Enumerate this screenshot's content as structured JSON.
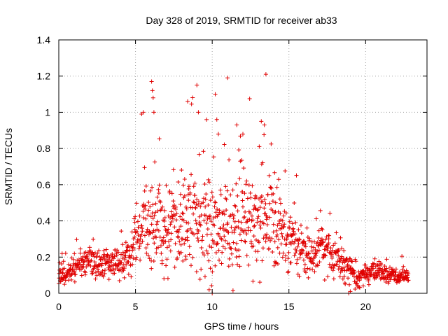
{
  "chart_data": {
    "type": "scatter",
    "title": "Day 328 of 2019, SRMTID for receiver ab33",
    "xlabel": "GPS time / hours",
    "ylabel": "SRMTID / TECUs",
    "xlim": [
      0,
      24
    ],
    "ylim": [
      0,
      1.4
    ],
    "xticks": [
      0,
      5,
      10,
      15,
      20
    ],
    "xtick_labels": [
      "0",
      "5",
      "10",
      "15",
      "20"
    ],
    "yticks": [
      0,
      0.2,
      0.4,
      0.6,
      0.8,
      1.0,
      1.2,
      1.4
    ],
    "ytick_labels": [
      "0",
      "0.2",
      "0.4",
      "0.6",
      "0.8",
      "1",
      "1.2",
      "1.4"
    ],
    "grid": true,
    "marker": "plus",
    "color": "#e00000",
    "series": [
      {
        "name": "SRMTID",
        "profile": [
          {
            "x": 0.0,
            "center": 0.09,
            "spread": 0.05
          },
          {
            "x": 1.0,
            "center": 0.13,
            "spread": 0.06
          },
          {
            "x": 2.0,
            "center": 0.19,
            "spread": 0.07
          },
          {
            "x": 3.0,
            "center": 0.16,
            "spread": 0.07
          },
          {
            "x": 4.0,
            "center": 0.15,
            "spread": 0.07
          },
          {
            "x": 4.8,
            "center": 0.22,
            "spread": 0.09
          },
          {
            "x": 5.5,
            "center": 0.42,
            "spread": 0.2
          },
          {
            "x": 6.2,
            "center": 0.4,
            "spread": 0.25
          },
          {
            "x": 7.0,
            "center": 0.33,
            "spread": 0.2
          },
          {
            "x": 8.5,
            "center": 0.4,
            "spread": 0.25
          },
          {
            "x": 10.0,
            "center": 0.38,
            "spread": 0.27
          },
          {
            "x": 11.5,
            "center": 0.35,
            "spread": 0.23
          },
          {
            "x": 13.0,
            "center": 0.42,
            "spread": 0.26
          },
          {
            "x": 14.5,
            "center": 0.35,
            "spread": 0.2
          },
          {
            "x": 15.5,
            "center": 0.24,
            "spread": 0.12
          },
          {
            "x": 16.5,
            "center": 0.2,
            "spread": 0.1
          },
          {
            "x": 17.3,
            "center": 0.26,
            "spread": 0.13
          },
          {
            "x": 18.5,
            "center": 0.17,
            "spread": 0.08
          },
          {
            "x": 19.5,
            "center": 0.09,
            "spread": 0.05
          },
          {
            "x": 20.5,
            "center": 0.12,
            "spread": 0.05
          },
          {
            "x": 22.8,
            "center": 0.08,
            "spread": 0.04
          }
        ],
        "x_start": 0.0,
        "x_end": 22.8,
        "sample_count": 1300,
        "outliers": [
          {
            "x": 5.4,
            "y": 0.99
          },
          {
            "x": 5.5,
            "y": 1.0
          },
          {
            "x": 6.05,
            "y": 1.17
          },
          {
            "x": 6.1,
            "y": 1.12
          },
          {
            "x": 6.15,
            "y": 1.08
          },
          {
            "x": 6.2,
            "y": 1.0
          },
          {
            "x": 8.4,
            "y": 1.06
          },
          {
            "x": 9.0,
            "y": 1.15
          },
          {
            "x": 9.1,
            "y": 1.0
          },
          {
            "x": 10.2,
            "y": 1.1
          },
          {
            "x": 10.3,
            "y": 0.96
          },
          {
            "x": 11.0,
            "y": 1.19
          },
          {
            "x": 11.6,
            "y": 0.93
          },
          {
            "x": 13.5,
            "y": 1.21
          },
          {
            "x": 13.2,
            "y": 0.95
          },
          {
            "x": 13.4,
            "y": 0.93
          },
          {
            "x": 12.0,
            "y": 0.88
          },
          {
            "x": 10.4,
            "y": 0.88
          },
          {
            "x": 9.8,
            "y": 0.02
          },
          {
            "x": 10.0,
            "y": 0.0
          },
          {
            "x": 18.9,
            "y": 0.0
          },
          {
            "x": 19.0,
            "y": 0.01
          }
        ]
      }
    ]
  }
}
